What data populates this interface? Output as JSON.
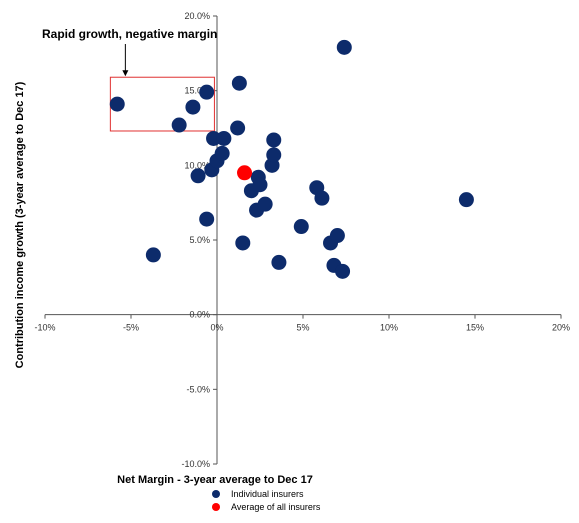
{
  "chart_data": {
    "type": "scatter",
    "title": "",
    "xlabel": "Net Margin - 3-year average to Dec 17",
    "ylabel": "Contribution income growth (3-year average to Dec 17)",
    "xlim": [
      -10,
      20
    ],
    "ylim": [
      -10,
      20
    ],
    "x_ticks": [
      "-10%",
      "-5%",
      "0%",
      "5%",
      "10%",
      "15%",
      "20%"
    ],
    "y_ticks": [
      "-10.0%",
      "-5.0%",
      "0.0%",
      "5.0%",
      "10.0%",
      "15.0%",
      "20.0%"
    ],
    "grid": false,
    "legend_position": "bottom",
    "series": [
      {
        "name": "Individual insurers",
        "color": "#0d2b6b",
        "points": [
          {
            "x": -5.8,
            "y": 14.1
          },
          {
            "x": -3.7,
            "y": 4.0
          },
          {
            "x": -2.2,
            "y": 12.7
          },
          {
            "x": -1.4,
            "y": 13.9
          },
          {
            "x": -1.1,
            "y": 9.3
          },
          {
            "x": -0.6,
            "y": 6.4
          },
          {
            "x": -0.6,
            "y": 14.9
          },
          {
            "x": -0.3,
            "y": 9.7
          },
          {
            "x": -0.2,
            "y": 11.8
          },
          {
            "x": 0.0,
            "y": 10.3
          },
          {
            "x": 0.3,
            "y": 10.8
          },
          {
            "x": 0.4,
            "y": 11.8
          },
          {
            "x": 1.2,
            "y": 12.5
          },
          {
            "x": 1.3,
            "y": 15.5
          },
          {
            "x": 1.5,
            "y": 4.8
          },
          {
            "x": 2.0,
            "y": 8.3
          },
          {
            "x": 2.3,
            "y": 7.0
          },
          {
            "x": 2.4,
            "y": 9.2
          },
          {
            "x": 2.5,
            "y": 8.7
          },
          {
            "x": 2.8,
            "y": 7.4
          },
          {
            "x": 3.2,
            "y": 10.0
          },
          {
            "x": 3.3,
            "y": 11.7
          },
          {
            "x": 3.3,
            "y": 10.7
          },
          {
            "x": 3.6,
            "y": 3.5
          },
          {
            "x": 4.9,
            "y": 5.9
          },
          {
            "x": 5.8,
            "y": 8.5
          },
          {
            "x": 6.1,
            "y": 7.8
          },
          {
            "x": 6.6,
            "y": 4.8
          },
          {
            "x": 6.8,
            "y": 3.3
          },
          {
            "x": 7.0,
            "y": 5.3
          },
          {
            "x": 7.3,
            "y": 2.9
          },
          {
            "x": 7.4,
            "y": 17.9
          },
          {
            "x": 14.5,
            "y": 7.7
          }
        ]
      },
      {
        "name": "Average of all insurers",
        "color": "#ff0000",
        "points": [
          {
            "x": 1.6,
            "y": 9.5
          }
        ]
      }
    ],
    "annotations": [
      {
        "text": "Rapid growth, negative margin"
      }
    ]
  }
}
